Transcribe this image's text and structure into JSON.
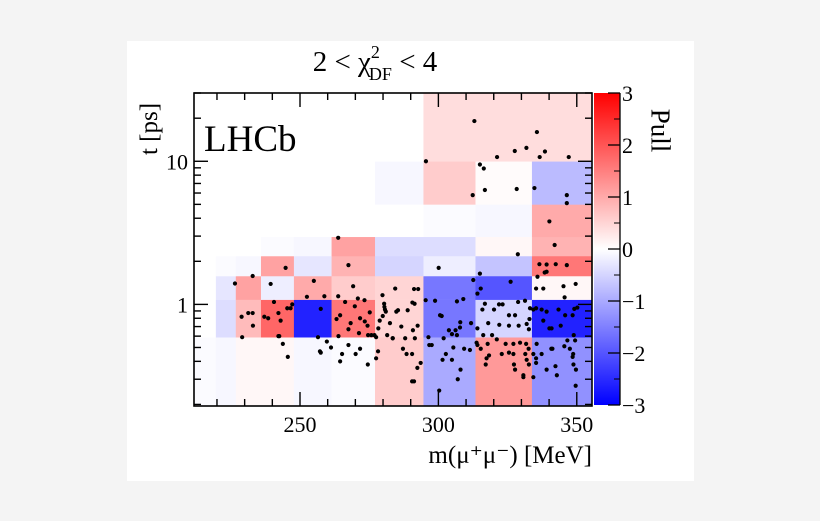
{
  "chart_data": {
    "type": "heatmap",
    "title": {
      "prefix": "2 < χ",
      "sup": "2",
      "sub": "DF",
      "suffix": " < 4"
    },
    "xlabel": "m(μ⁺μ⁻) [MeV]",
    "ylabel": "t [ps]",
    "annotation": "LHCb",
    "colorbar_label": "Pull",
    "xlim": [
      211.7,
      355.5
    ],
    "ylim": [
      0.195,
      30
    ],
    "yscale": "log",
    "x_ticks": [
      250,
      300,
      350
    ],
    "x_tick_labels": [
      "250",
      "300",
      "350"
    ],
    "y_ticks": [
      1,
      10
    ],
    "y_tick_labels": [
      "1",
      "10"
    ],
    "colorbar_ticks": [
      -3,
      -2,
      -1,
      0,
      1,
      2,
      3
    ],
    "colorbar_tick_labels": [
      "−3",
      "−2",
      "−1",
      "0",
      "1",
      "2",
      "3"
    ],
    "colorscale": {
      "min": -3,
      "max": 3,
      "low": "#0000ff",
      "mid": "#ffffff",
      "high": "#ff0000"
    },
    "x_bin_edges": [
      211.7,
      219.6,
      226.8,
      235.9,
      247.8,
      261.4,
      277.1,
      294.6,
      313.4,
      333.8,
      355.5
    ],
    "y_bin_edges": [
      0.195,
      0.59,
      1.08,
      1.58,
      2.18,
      2.97,
      5.0,
      10.0,
      30.0
    ],
    "pull": [
      [
        -0.05,
        -0.1,
        0.1,
        0.1,
        -0.1,
        -0.05,
        0.6,
        -1.0,
        1.2,
        -1.3
      ],
      [
        0.0,
        -0.4,
        0.8,
        1.8,
        -2.6,
        1.6,
        0.5,
        -1.6,
        -0.5,
        -2.6
      ],
      [
        0.0,
        -0.3,
        1.1,
        -0.2,
        1.0,
        0.6,
        0.5,
        -1.6,
        -2.0,
        0.1
      ],
      [
        0.0,
        -0.05,
        -0.1,
        1.1,
        -0.3,
        0.9,
        -0.5,
        -0.2,
        -0.7,
        1.6
      ],
      [
        0.0,
        0.0,
        0.0,
        -0.05,
        -0.1,
        1.1,
        -0.4,
        -0.4,
        0.1,
        0.9
      ],
      [
        0.0,
        0.0,
        0.0,
        0.0,
        0.0,
        0.0,
        0.0,
        -0.05,
        -0.1,
        1.0
      ],
      [
        0.0,
        0.0,
        0.0,
        0.0,
        0.0,
        0.0,
        -0.1,
        0.6,
        0.05,
        -0.8
      ],
      [
        0.0,
        0.0,
        0.0,
        0.0,
        0.0,
        0.0,
        0.0,
        0.4,
        0.4,
        0.4
      ]
    ],
    "points": [
      [
        263.8,
        2.92
      ],
      [
        267.5,
        1.88
      ],
      [
        244.8,
        1.8
      ],
      [
        232.9,
        1.58
      ],
      [
        226.5,
        1.4
      ],
      [
        239.4,
        1.39
      ],
      [
        255.0,
        1.46
      ],
      [
        269.2,
        1.34
      ],
      [
        279.8,
        1.16
      ],
      [
        252.5,
        1.13
      ],
      [
        258.8,
        1.14
      ],
      [
        263.8,
        1.14
      ],
      [
        240.6,
        1.04
      ],
      [
        247.2,
        1.0
      ],
      [
        246.6,
        0.94
      ],
      [
        245.4,
        0.94
      ],
      [
        266.3,
        1.04
      ],
      [
        270.9,
        1.1
      ],
      [
        273.3,
        1.07
      ],
      [
        269.8,
        0.97
      ],
      [
        280.4,
        1.01
      ],
      [
        280.7,
        0.92
      ],
      [
        281.0,
        0.89
      ],
      [
        231.3,
        0.87
      ],
      [
        232.9,
        0.87
      ],
      [
        228.9,
        0.82
      ],
      [
        233.0,
        0.71
      ],
      [
        242.2,
        0.87
      ],
      [
        237.1,
        0.82
      ],
      [
        238.5,
        0.8
      ],
      [
        243.0,
        0.77
      ],
      [
        257.5,
        0.93
      ],
      [
        264.5,
        0.84
      ],
      [
        263.2,
        0.79
      ],
      [
        268.3,
        0.74
      ],
      [
        271.7,
        0.8
      ],
      [
        273.4,
        0.76
      ],
      [
        274.4,
        0.71
      ],
      [
        267.5,
        0.67
      ],
      [
        271.3,
        0.63
      ],
      [
        275.2,
        0.88
      ],
      [
        278.8,
        0.77
      ],
      [
        278.3,
        0.68
      ],
      [
        276.9,
        0.61
      ],
      [
        274.6,
        0.61
      ],
      [
        275.8,
        0.61
      ],
      [
        277.5,
        0.59
      ],
      [
        281.5,
        0.61
      ],
      [
        283.5,
        0.58
      ],
      [
        229.1,
        0.59
      ],
      [
        242.2,
        0.6
      ],
      [
        242.5,
        0.6
      ],
      [
        243.8,
        0.53
      ],
      [
        245.6,
        0.43
      ],
      [
        256.5,
        0.59
      ],
      [
        259.7,
        0.55
      ],
      [
        257.2,
        0.47
      ],
      [
        257.5,
        0.46
      ],
      [
        261.2,
        0.5
      ],
      [
        263.9,
        0.6
      ],
      [
        267.5,
        0.52
      ],
      [
        265.2,
        0.45
      ],
      [
        264.5,
        0.4
      ],
      [
        270.1,
        0.45
      ],
      [
        271.7,
        0.49
      ],
      [
        274.5,
        0.38
      ],
      [
        277.5,
        0.42
      ],
      [
        278.2,
        0.47
      ],
      [
        279.9,
        0.83
      ],
      [
        280.5,
        0.96
      ],
      [
        342.0,
        2.6
      ],
      [
        328.7,
        2.24
      ],
      [
        336.5,
        1.91
      ],
      [
        339.1,
        1.9
      ],
      [
        342.4,
        1.91
      ],
      [
        346.4,
        1.88
      ],
      [
        338.4,
        1.67
      ],
      [
        339.1,
        1.69
      ],
      [
        300.1,
        1.8
      ],
      [
        315.0,
        1.64
      ],
      [
        312.6,
        1.48
      ],
      [
        326.1,
        1.44
      ],
      [
        314.1,
        1.19
      ],
      [
        315.3,
        1.29
      ],
      [
        335.8,
        1.56
      ],
      [
        345.2,
        1.34
      ],
      [
        349.6,
        1.39
      ],
      [
        335.3,
        1.29
      ],
      [
        337.9,
        1.29
      ],
      [
        345.6,
        1.12
      ],
      [
        284.4,
        1.29
      ],
      [
        291.2,
        1.28
      ],
      [
        292.7,
        1.28
      ],
      [
        295.4,
        1.07
      ],
      [
        298.8,
        1.06
      ],
      [
        306.7,
        1.05
      ],
      [
        309.0,
        1.09
      ],
      [
        284.8,
        0.89
      ],
      [
        285.4,
        0.91
      ],
      [
        288.9,
        0.91
      ],
      [
        290.6,
        1.03
      ],
      [
        291.4,
        1.01
      ],
      [
        282.5,
        0.74
      ],
      [
        286.6,
        0.7
      ],
      [
        290.8,
        0.66
      ],
      [
        292.5,
        0.71
      ],
      [
        283.5,
        0.58
      ],
      [
        288.0,
        0.58
      ],
      [
        291.5,
        0.58
      ],
      [
        287.2,
        0.49
      ],
      [
        288.5,
        0.45
      ],
      [
        290.5,
        0.45
      ],
      [
        293.6,
        0.39
      ],
      [
        292.4,
        0.36
      ],
      [
        291.2,
        0.29
      ],
      [
        290.5,
        0.29
      ],
      [
        296.4,
        0.59
      ],
      [
        296.7,
        0.52
      ],
      [
        297.6,
        0.52
      ],
      [
        301.9,
        0.58
      ],
      [
        300.6,
        0.84
      ],
      [
        301.2,
        0.83
      ],
      [
        307.9,
        0.75
      ],
      [
        307.8,
        0.69
      ],
      [
        306.7,
        0.61
      ],
      [
        304.9,
        0.62
      ],
      [
        306.2,
        0.66
      ],
      [
        303.8,
        0.66
      ],
      [
        305.4,
        0.5
      ],
      [
        301.5,
        0.41
      ],
      [
        302.7,
        0.45
      ],
      [
        304.9,
        0.41
      ],
      [
        307.0,
        0.3
      ],
      [
        308.0,
        0.35
      ],
      [
        311.4,
        0.48
      ],
      [
        300.3,
        0.25
      ],
      [
        309.3,
        0.49
      ],
      [
        311.8,
        0.74
      ],
      [
        314.1,
        0.68
      ],
      [
        315.9,
        0.92
      ],
      [
        316.8,
        1.01
      ],
      [
        320.1,
        0.92
      ],
      [
        321.9,
        1.0
      ],
      [
        323.2,
        1.0
      ],
      [
        328.8,
        1.04
      ],
      [
        331.3,
        1.06
      ],
      [
        325.5,
        0.84
      ],
      [
        327.7,
        0.84
      ],
      [
        322.0,
        0.72
      ],
      [
        318.0,
        0.74
      ],
      [
        316.2,
        0.61
      ],
      [
        319.4,
        0.61
      ],
      [
        321.1,
        0.57
      ],
      [
        325.5,
        0.71
      ],
      [
        329.0,
        0.71
      ],
      [
        331.9,
        0.73
      ],
      [
        332.9,
        0.79
      ],
      [
        332.7,
        0.67
      ],
      [
        333.1,
        0.94
      ],
      [
        334.3,
        0.92
      ],
      [
        335.3,
        0.94
      ],
      [
        337.3,
        0.92
      ],
      [
        339.1,
        0.89
      ],
      [
        343.4,
        0.92
      ],
      [
        345.8,
        0.84
      ],
      [
        349.1,
        0.93
      ],
      [
        350.2,
        0.95
      ],
      [
        337.9,
        0.77
      ],
      [
        340.9,
        0.68
      ],
      [
        340.1,
        0.68
      ],
      [
        344.2,
        0.71
      ],
      [
        348.5,
        0.84
      ],
      [
        313.8,
        0.54
      ],
      [
        314.1,
        0.52
      ],
      [
        317.8,
        0.53
      ],
      [
        324.3,
        0.53
      ],
      [
        327.1,
        0.53
      ],
      [
        329.5,
        0.54
      ],
      [
        331.7,
        0.53
      ],
      [
        332.6,
        0.49
      ],
      [
        331.4,
        0.45
      ],
      [
        334.3,
        0.45
      ],
      [
        315.3,
        0.49
      ],
      [
        318.3,
        0.44
      ],
      [
        317.4,
        0.42
      ],
      [
        317.1,
        0.38
      ],
      [
        322.9,
        0.45
      ],
      [
        325.5,
        0.46
      ],
      [
        327.1,
        0.45
      ],
      [
        327.3,
        0.38
      ],
      [
        327.7,
        0.35
      ],
      [
        330.7,
        0.32
      ],
      [
        330.7,
        0.31
      ],
      [
        331.9,
        0.41
      ],
      [
        332.7,
        0.38
      ],
      [
        335.3,
        0.42
      ],
      [
        339.1,
        0.35
      ],
      [
        341.2,
        0.49
      ],
      [
        340.8,
        0.49
      ],
      [
        342.3,
        0.37
      ],
      [
        342.8,
        0.32
      ],
      [
        346.6,
        0.56
      ],
      [
        348.9,
        0.61
      ],
      [
        349.4,
        0.56
      ],
      [
        347.5,
        0.49
      ],
      [
        348.5,
        0.43
      ],
      [
        348.8,
        0.38
      ],
      [
        349.7,
        0.35
      ],
      [
        349.6,
        0.27
      ],
      [
        334.3,
        0.31
      ],
      [
        335.3,
        0.39
      ],
      [
        335.5,
        0.53
      ],
      [
        337.3,
        0.45
      ],
      [
        345.5,
        0.51
      ],
      [
        348.7,
        0.45
      ],
      [
        313.0,
        19.1
      ],
      [
        335.6,
        16.0
      ],
      [
        327.6,
        11.8
      ],
      [
        331.8,
        12.4
      ],
      [
        338.5,
        11.7
      ],
      [
        321.2,
        10.7
      ],
      [
        336.6,
        10.7
      ],
      [
        347.1,
        10.7
      ],
      [
        295.5,
        10.0
      ],
      [
        315.0,
        9.5
      ],
      [
        316.4,
        8.9
      ],
      [
        316.8,
        6.3
      ],
      [
        312.4,
        5.8
      ],
      [
        328.3,
        6.4
      ],
      [
        334.7,
        6.5
      ],
      [
        346.4,
        5.8
      ],
      [
        346.4,
        5.1
      ],
      [
        340.1,
        3.8
      ]
    ]
  }
}
